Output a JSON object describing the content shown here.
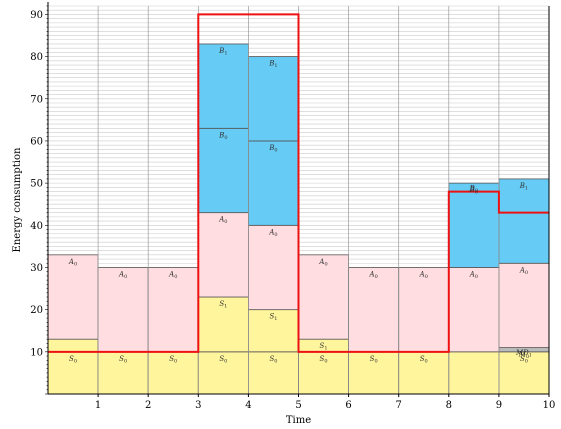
{
  "chart_data": {
    "type": "bar",
    "xlabel": "Time",
    "ylabel": "Energy consumption",
    "xlim": [
      0,
      10
    ],
    "ylim": [
      0,
      92
    ],
    "x_ticks": [
      "1",
      "2",
      "3",
      "4",
      "5",
      "6",
      "7",
      "8",
      "9",
      "10"
    ],
    "y_ticks": [
      "10",
      "20",
      "30",
      "40",
      "50",
      "60",
      "70",
      "80",
      "90"
    ],
    "grid": "horizontal-minor",
    "colors": {
      "S": "#fff59d",
      "A": "#ffdde1",
      "B": "#66ccf5",
      "M": "#bbbbbb",
      "capacity_line": "#ee1111",
      "grid": "#cccccc",
      "vertical_grid": "#999999"
    },
    "bars": [
      {
        "x": [
          0,
          1
        ],
        "segments": [
          {
            "label": "S",
            "sub": "0",
            "kind": "S",
            "value": 10
          },
          {
            "label": "",
            "sub": "",
            "kind": "S",
            "value": 3
          },
          {
            "label": "A",
            "sub": "0",
            "kind": "A",
            "value": 20
          }
        ]
      },
      {
        "x": [
          1,
          2
        ],
        "segments": [
          {
            "label": "S",
            "sub": "0",
            "kind": "S",
            "value": 10
          },
          {
            "label": "A",
            "sub": "0",
            "kind": "A",
            "value": 20
          }
        ]
      },
      {
        "x": [
          2,
          3
        ],
        "segments": [
          {
            "label": "S",
            "sub": "0",
            "kind": "S",
            "value": 10
          },
          {
            "label": "A",
            "sub": "0",
            "kind": "A",
            "value": 20
          }
        ]
      },
      {
        "x": [
          3,
          4
        ],
        "segments": [
          {
            "label": "S",
            "sub": "0",
            "kind": "S",
            "value": 10
          },
          {
            "label": "S",
            "sub": "1",
            "kind": "S",
            "value": 13
          },
          {
            "label": "A",
            "sub": "0",
            "kind": "A",
            "value": 20
          },
          {
            "label": "B",
            "sub": "0",
            "kind": "B",
            "value": 20
          },
          {
            "label": "B",
            "sub": "1",
            "kind": "B",
            "value": 20
          }
        ]
      },
      {
        "x": [
          4,
          5
        ],
        "segments": [
          {
            "label": "S",
            "sub": "0",
            "kind": "S",
            "value": 10
          },
          {
            "label": "S",
            "sub": "1",
            "kind": "S",
            "value": 10
          },
          {
            "label": "A",
            "sub": "0",
            "kind": "A",
            "value": 20
          },
          {
            "label": "B",
            "sub": "0",
            "kind": "B",
            "value": 20
          },
          {
            "label": "B",
            "sub": "1",
            "kind": "B",
            "value": 20
          }
        ]
      },
      {
        "x": [
          5,
          6
        ],
        "segments": [
          {
            "label": "S",
            "sub": "0",
            "kind": "S",
            "value": 10
          },
          {
            "label": "S",
            "sub": "1",
            "kind": "S",
            "value": 3
          },
          {
            "label": "A",
            "sub": "0",
            "kind": "A",
            "value": 20
          }
        ]
      },
      {
        "x": [
          6,
          7
        ],
        "segments": [
          {
            "label": "S",
            "sub": "0",
            "kind": "S",
            "value": 10
          },
          {
            "label": "A",
            "sub": "0",
            "kind": "A",
            "value": 20
          }
        ]
      },
      {
        "x": [
          7,
          8
        ],
        "segments": [
          {
            "label": "S",
            "sub": "0",
            "kind": "S",
            "value": 10
          },
          {
            "label": "A",
            "sub": "0",
            "kind": "A",
            "value": 20
          }
        ]
      },
      {
        "x": [
          8,
          9
        ],
        "segments": [
          {
            "label": "",
            "sub": "",
            "kind": "S",
            "value": 10
          },
          {
            "label": "A",
            "sub": "0",
            "kind": "A",
            "value": 20
          },
          {
            "label": "B",
            "sub": "0",
            "kind": "B",
            "value": 20
          }
        ]
      },
      {
        "x": [
          9,
          10
        ],
        "segments": [
          {
            "label": "S",
            "sub": "0",
            "kind": "S",
            "value": 10
          },
          {
            "label": "M",
            "sub": "0",
            "kind": "M",
            "value": 1
          },
          {
            "label": "A",
            "sub": "0",
            "kind": "A",
            "value": 20
          },
          {
            "label": "B",
            "sub": "1",
            "kind": "B",
            "value": 20
          }
        ]
      }
    ],
    "capacity_line": {
      "steps": [
        {
          "x": [
            0,
            3
          ],
          "y": 10
        },
        {
          "x": [
            3,
            5
          ],
          "y": 90
        },
        {
          "x": [
            5,
            8
          ],
          "y": 10
        },
        {
          "x": [
            8,
            9
          ],
          "y": 48
        },
        {
          "x": [
            9,
            10
          ],
          "y": 43
        }
      ]
    },
    "annotations": [
      {
        "text": "B",
        "sub": "0",
        "x": 8.5,
        "y": 49
      },
      {
        "text": "MD",
        "sub": "1",
        "x": 9.5,
        "y": 10
      }
    ]
  }
}
